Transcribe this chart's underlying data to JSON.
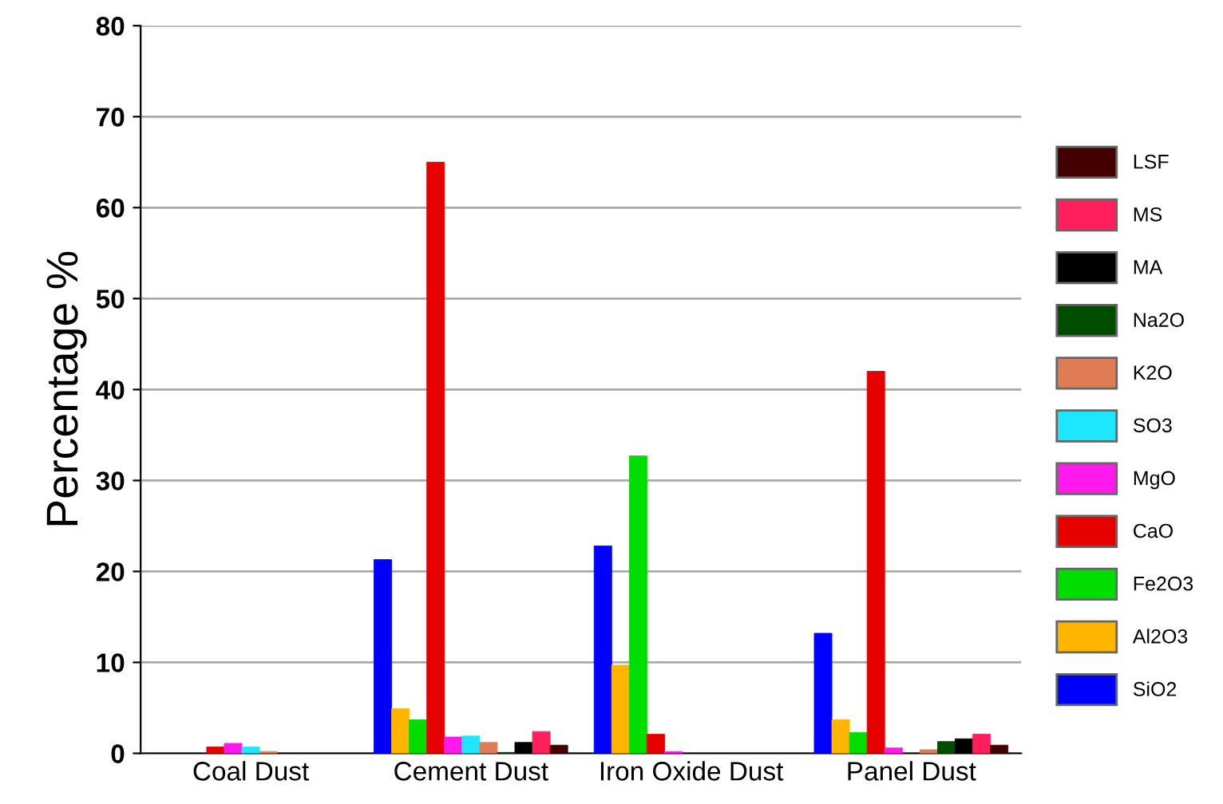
{
  "chart_data": {
    "type": "bar",
    "ylabel": "Percentage %",
    "categories": [
      "Coal Dust",
      "Cement Dust",
      "Iron Oxide Dust",
      "Panel Dust"
    ],
    "ylim": [
      0,
      80
    ],
    "yticks": [
      0,
      10,
      20,
      30,
      40,
      50,
      60,
      70,
      80
    ],
    "grid": "y",
    "legend": "right",
    "series": [
      {
        "name": "SiO2",
        "color": "#0000ff",
        "values": [
          null,
          21.3,
          22.8,
          13.2
        ]
      },
      {
        "name": "Al2O3",
        "color": "#ffb400",
        "values": [
          null,
          4.9,
          9.7,
          3.7
        ]
      },
      {
        "name": "Fe2O3",
        "color": "#00dd00",
        "values": [
          null,
          3.7,
          32.7,
          2.3
        ]
      },
      {
        "name": "CaO",
        "color": "#e60000",
        "values": [
          0.7,
          65,
          2.1,
          42
        ]
      },
      {
        "name": "MgO",
        "color": "#ff19ec",
        "values": [
          1.1,
          1.8,
          0.2,
          0.6
        ]
      },
      {
        "name": "SO3",
        "color": "#1ee6ff",
        "values": [
          0.7,
          1.9,
          null,
          null
        ]
      },
      {
        "name": "K2O",
        "color": "#e07c55",
        "values": [
          0.2,
          1.2,
          null,
          0.4
        ]
      },
      {
        "name": "Na2O",
        "color": "#004d00",
        "values": [
          null,
          0.1,
          null,
          1.3
        ]
      },
      {
        "name": "MA",
        "color": "#000000",
        "values": [
          null,
          1.2,
          null,
          1.6
        ]
      },
      {
        "name": "MS",
        "color": "#ff1f5a",
        "values": [
          null,
          2.4,
          null,
          2.1
        ]
      },
      {
        "name": "LSF",
        "color": "#420000",
        "values": [
          null,
          0.9,
          null,
          0.9
        ]
      }
    ]
  }
}
